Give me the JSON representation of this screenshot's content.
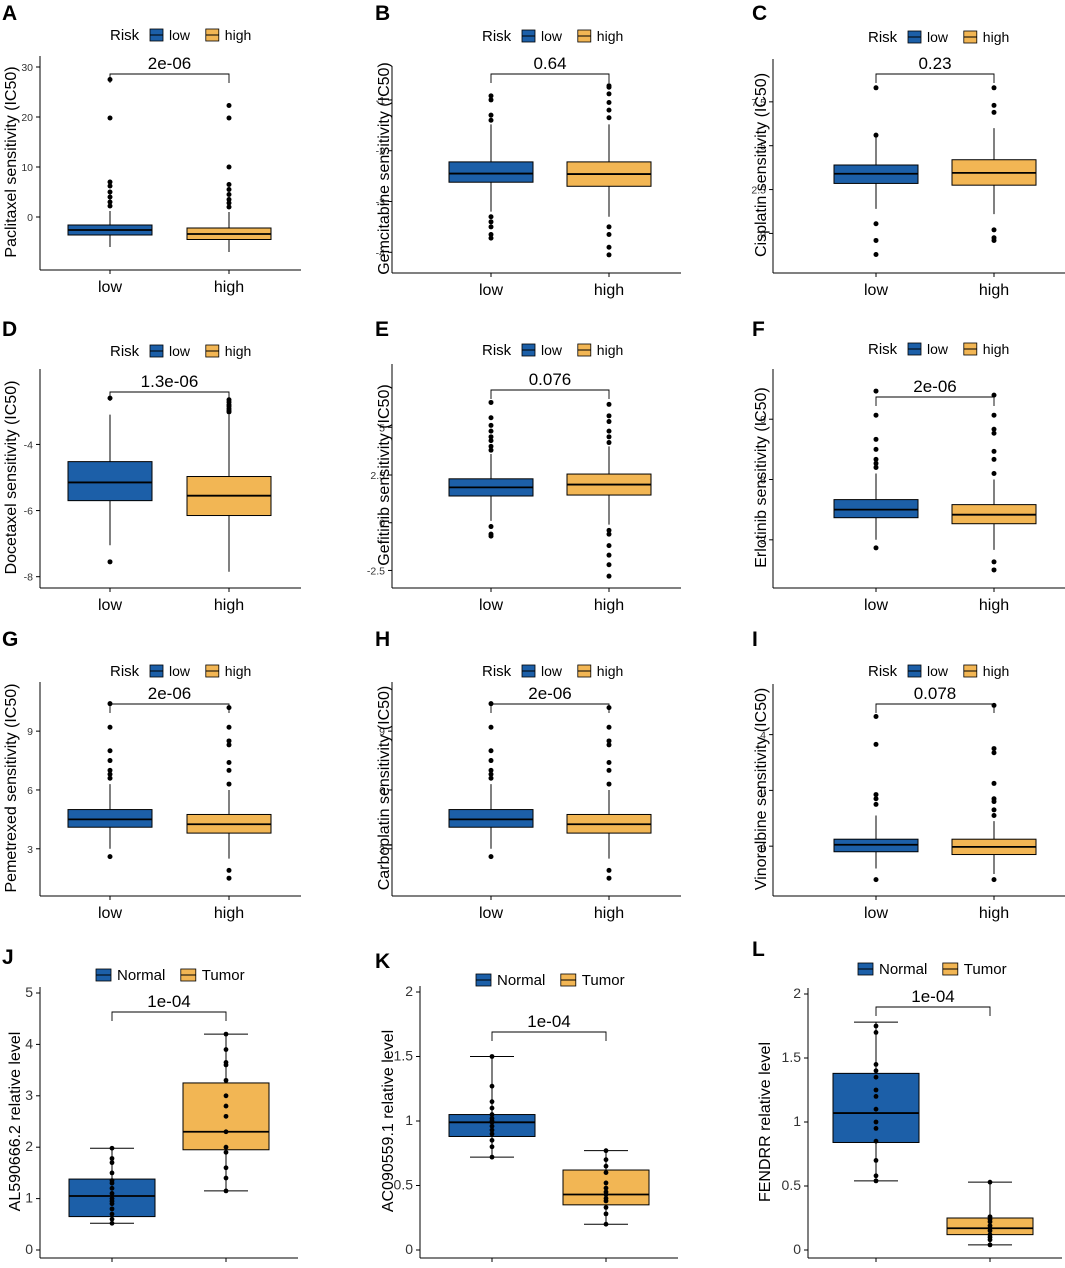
{
  "figure": {
    "width": 1065,
    "height": 1268
  },
  "colors": {
    "low": "#1c5fa8",
    "high": "#f2b654",
    "axis": "#000000"
  },
  "chart_data": [
    {
      "panel": "A",
      "type": "box",
      "ylabel": "Paclitaxel sensitivity (IC50)",
      "legend_title": "Risk",
      "legend_items": [
        "low",
        "high"
      ],
      "categories": [
        "low",
        "high"
      ],
      "ylim": [
        -9,
        31
      ],
      "yticks": [
        0,
        10,
        20,
        30
      ],
      "pvalue": "2e-06",
      "boxes": [
        {
          "q1": -3.6,
          "median": -2.6,
          "q3": -1.6,
          "wlo": -6.0,
          "whi": 1.2,
          "outliers": [
            2.2,
            3.0,
            4.0,
            5.0,
            6.2,
            7.0,
            19.8,
            27.5
          ]
        },
        {
          "q1": -4.5,
          "median": -3.4,
          "q3": -2.2,
          "wlo": -7.0,
          "whi": 1.0,
          "outliers": [
            2.0,
            2.8,
            3.5,
            4.5,
            5.5,
            6.5,
            10.0,
            19.8,
            22.3
          ]
        }
      ]
    },
    {
      "panel": "B",
      "type": "box",
      "ylabel": "Gemcitabine sensitivity (IC50)",
      "legend_title": "Risk",
      "legend_items": [
        "low",
        "high"
      ],
      "categories": [
        "low",
        "high"
      ],
      "ylim": [
        -4.25,
        -0.45
      ],
      "yticks": [
        -4,
        -3,
        -2,
        -1
      ],
      "pvalue": "0.64",
      "boxes": [
        {
          "q1": -2.62,
          "median": -2.45,
          "q3": -2.22,
          "wlo": -3.2,
          "whi": -1.48,
          "outliers": [
            -3.3,
            -3.4,
            -3.5,
            -3.65,
            -3.72,
            -1.3,
            -1.4,
            -1.0,
            -0.92
          ]
        },
        {
          "q1": -2.7,
          "median": -2.46,
          "q3": -2.22,
          "wlo": -3.3,
          "whi": -1.48,
          "outliers": [
            -3.5,
            -3.65,
            -3.9,
            -4.05,
            -1.35,
            -1.2,
            -1.05,
            -0.88,
            -0.75,
            -0.72
          ]
        }
      ]
    },
    {
      "panel": "C",
      "type": "box",
      "ylabel": "Cisplatin sensitivity (IC50)",
      "legend_title": "Risk",
      "legend_items": [
        "low",
        "high"
      ],
      "categories": [
        "low",
        "high"
      ],
      "ylim": [
        -1.8,
        9.6
      ],
      "yticks": [
        0.0,
        2.5,
        5.0,
        7.5
      ],
      "pvalue": "0.23",
      "boxes": [
        {
          "q1": 2.85,
          "median": 3.4,
          "q3": 3.9,
          "wlo": 1.4,
          "whi": 5.5,
          "outliers": [
            0.55,
            -0.4,
            -1.2,
            5.6,
            8.3
          ]
        },
        {
          "q1": 2.75,
          "median": 3.45,
          "q3": 4.2,
          "wlo": 1.1,
          "whi": 6.0,
          "outliers": [
            0.2,
            -0.25,
            -0.4,
            6.9,
            7.3,
            8.3
          ]
        }
      ]
    },
    {
      "panel": "D",
      "type": "box",
      "ylabel": "Docetaxel sensitivity (IC50)",
      "legend_title": "Risk",
      "legend_items": [
        "low",
        "high"
      ],
      "categories": [
        "low",
        "high"
      ],
      "ylim": [
        -8.1,
        -1.9
      ],
      "yticks": [
        -8,
        -6,
        -4
      ],
      "pvalue": "1.3e-06",
      "boxes": [
        {
          "q1": -5.7,
          "median": -5.15,
          "q3": -4.52,
          "wlo": -7.05,
          "whi": -3.1,
          "outliers": [
            -7.55,
            -2.6
          ]
        },
        {
          "q1": -6.15,
          "median": -5.55,
          "q3": -4.97,
          "wlo": -7.85,
          "whi": -3.1,
          "outliers": [
            -2.65,
            -2.72,
            -2.8,
            -2.85,
            -2.92,
            -2.98,
            -3.02
          ]
        }
      ]
    },
    {
      "panel": "E",
      "type": "box",
      "ylabel": "Gefitinib sensitivity (IC50)",
      "legend_title": "Risk",
      "legend_items": [
        "low",
        "high"
      ],
      "categories": [
        "low",
        "high"
      ],
      "ylim": [
        -3.0,
        8.0
      ],
      "yticks": [
        -2.5,
        0.0,
        2.5,
        5.0
      ],
      "pvalue": "0.076",
      "boxes": [
        {
          "q1": 1.4,
          "median": 1.85,
          "q3": 2.3,
          "wlo": 0.1,
          "whi": 3.6,
          "outliers": [
            -0.2,
            -0.6,
            -0.7,
            3.8,
            4.0,
            4.3,
            4.5,
            4.8,
            5.1,
            5.5,
            6.3
          ]
        },
        {
          "q1": 1.45,
          "median": 2.0,
          "q3": 2.55,
          "wlo": -0.1,
          "whi": 4.0,
          "outliers": [
            -0.4,
            -0.6,
            -1.2,
            -1.7,
            -2.2,
            -2.8,
            4.2,
            4.5,
            4.8,
            5.3,
            5.6,
            6.2
          ]
        }
      ]
    },
    {
      "panel": "F",
      "type": "box",
      "ylabel": "Erlotinib sensitivity (IC50)",
      "legend_title": "Risk",
      "legend_items": [
        "low",
        "high"
      ],
      "categories": [
        "low",
        "high"
      ],
      "ylim": [
        1.0,
        11.2
      ],
      "yticks": [
        3,
        6,
        9
      ],
      "pvalue": "2e-06",
      "boxes": [
        {
          "q1": 4.1,
          "median": 4.5,
          "q3": 5.0,
          "wlo": 3.0,
          "whi": 6.3,
          "outliers": [
            2.6,
            6.6,
            6.8,
            7.0,
            7.5,
            8.0,
            9.2,
            10.4
          ]
        },
        {
          "q1": 3.8,
          "median": 4.25,
          "q3": 4.75,
          "wlo": 2.5,
          "whi": 6.0,
          "outliers": [
            1.5,
            1.9,
            6.3,
            7.0,
            7.4,
            8.3,
            8.5,
            9.2,
            10.2
          ]
        }
      ]
    },
    {
      "panel": "G",
      "type": "box",
      "ylabel": "Pemetrexed sensitivity (IC50)",
      "legend_title": "Risk",
      "legend_items": [
        "low",
        "high"
      ],
      "categories": [
        "low",
        "high"
      ],
      "ylim": [
        1.0,
        11.2
      ],
      "yticks": [
        3,
        6,
        9
      ],
      "pvalue": "2e-06",
      "boxes": [
        {
          "q1": 4.1,
          "median": 4.5,
          "q3": 5.0,
          "wlo": 3.0,
          "whi": 6.3,
          "outliers": [
            2.6,
            6.6,
            6.8,
            7.0,
            7.5,
            8.0,
            9.2,
            10.4
          ]
        },
        {
          "q1": 3.8,
          "median": 4.25,
          "q3": 4.75,
          "wlo": 2.5,
          "whi": 6.0,
          "outliers": [
            1.5,
            1.9,
            6.3,
            7.0,
            7.4,
            8.3,
            8.5,
            9.2,
            10.2
          ]
        }
      ]
    },
    {
      "panel": "H",
      "type": "box",
      "ylabel": "Carboplatin sensitivity (IC50)",
      "legend_title": "Risk",
      "legend_items": [
        "low",
        "high"
      ],
      "categories": [
        "low",
        "high"
      ],
      "ylim": [
        1.0,
        11.2
      ],
      "yticks": [
        3,
        6,
        9
      ],
      "pvalue": "2e-06",
      "boxes": [
        {
          "q1": 4.1,
          "median": 4.5,
          "q3": 5.0,
          "wlo": 3.0,
          "whi": 6.3,
          "outliers": [
            2.6,
            6.6,
            6.8,
            7.0,
            7.5,
            8.0,
            9.2,
            10.4
          ]
        },
        {
          "q1": 3.8,
          "median": 4.25,
          "q3": 4.75,
          "wlo": 2.5,
          "whi": 6.0,
          "outliers": [
            1.5,
            1.9,
            6.3,
            7.0,
            7.4,
            8.3,
            8.5,
            9.2,
            10.2
          ]
        }
      ]
    },
    {
      "panel": "I",
      "type": "box",
      "ylabel": "Vinorelbine sensitivity (IC50)",
      "legend_title": "Risk",
      "legend_items": [
        "low",
        "high"
      ],
      "categories": [
        "low",
        "high"
      ],
      "ylim": [
        -7.0,
        7.2
      ],
      "yticks": [
        -4,
        0,
        4
      ],
      "pvalue": "0.078",
      "boxes": [
        {
          "q1": -4.4,
          "median": -3.9,
          "q3": -3.5,
          "wlo": -5.6,
          "whi": -1.8,
          "outliers": [
            -6.4,
            -1.0,
            -0.6,
            -0.3,
            3.3,
            5.3
          ]
        },
        {
          "q1": -4.6,
          "median": -4.05,
          "q3": -3.5,
          "wlo": -6.0,
          "whi": -2.2,
          "outliers": [
            -6.4,
            -1.8,
            -1.4,
            -0.8,
            -0.6,
            0.5,
            2.7,
            3.0,
            6.1
          ]
        }
      ]
    },
    {
      "panel": "J",
      "type": "box",
      "ylabel": "AL590666.2 relative level",
      "legend_title": "",
      "legend_items": [
        "Normal",
        "Tumor"
      ],
      "categories": [
        "Normal",
        "Tumor"
      ],
      "ylim": [
        0,
        5
      ],
      "yticks": [
        0,
        1,
        2,
        3,
        4,
        5
      ],
      "pvalue": "1e-04",
      "boxes": [
        {
          "q1": 0.65,
          "median": 1.05,
          "q3": 1.38,
          "wlo": 0.52,
          "whi": 1.98,
          "points": [
            0.52,
            0.6,
            0.7,
            0.8,
            0.9,
            0.95,
            1.0,
            1.1,
            1.2,
            1.3,
            1.35,
            1.5,
            1.7,
            1.78,
            1.98
          ]
        },
        {
          "q1": 1.95,
          "median": 2.3,
          "q3": 3.25,
          "wlo": 1.15,
          "whi": 4.2,
          "points": [
            1.15,
            1.4,
            1.6,
            1.9,
            2.0,
            2.3,
            2.6,
            2.8,
            3.0,
            3.3,
            3.6,
            3.65,
            3.9,
            4.2
          ]
        }
      ]
    },
    {
      "panel": "K",
      "type": "box",
      "ylabel": "AC090559.1 relative level",
      "legend_title": "",
      "legend_items": [
        "Normal",
        "Tumor"
      ],
      "categories": [
        "Normal",
        "Tumor"
      ],
      "ylim": [
        0,
        2.0
      ],
      "yticks": [
        0.0,
        0.5,
        1.0,
        1.5,
        2.0
      ],
      "pvalue": "1e-04",
      "boxes": [
        {
          "q1": 0.88,
          "median": 0.99,
          "q3": 1.05,
          "wlo": 0.72,
          "whi": 1.5,
          "points": [
            0.72,
            0.8,
            0.85,
            0.9,
            0.93,
            0.96,
            0.99,
            1.0,
            1.02,
            1.05,
            1.1,
            1.15,
            1.27,
            1.5
          ]
        },
        {
          "q1": 0.35,
          "median": 0.43,
          "q3": 0.62,
          "wlo": 0.2,
          "whi": 0.77,
          "points": [
            0.2,
            0.28,
            0.33,
            0.38,
            0.4,
            0.43,
            0.45,
            0.48,
            0.52,
            0.6,
            0.65,
            0.7,
            0.77
          ]
        }
      ]
    },
    {
      "panel": "L",
      "type": "box",
      "ylabel": "FENDRR relative level",
      "legend_title": "",
      "legend_items": [
        "Normal",
        "Tumor"
      ],
      "categories": [
        "Normal",
        "Tumor"
      ],
      "ylim": [
        0,
        2.0
      ],
      "yticks": [
        0.0,
        0.5,
        1.0,
        1.5,
        2.0
      ],
      "pvalue": "1e-04",
      "boxes": [
        {
          "q1": 0.84,
          "median": 1.07,
          "q3": 1.38,
          "wlo": 0.54,
          "whi": 1.78,
          "points": [
            0.54,
            0.58,
            0.7,
            0.85,
            0.95,
            1.0,
            1.1,
            1.2,
            1.25,
            1.35,
            1.4,
            1.45,
            1.7,
            1.75
          ]
        },
        {
          "q1": 0.12,
          "median": 0.17,
          "q3": 0.25,
          "wlo": 0.04,
          "whi": 0.53,
          "points": [
            0.04,
            0.08,
            0.1,
            0.12,
            0.15,
            0.17,
            0.19,
            0.22,
            0.24,
            0.26,
            0.53
          ]
        }
      ]
    }
  ]
}
